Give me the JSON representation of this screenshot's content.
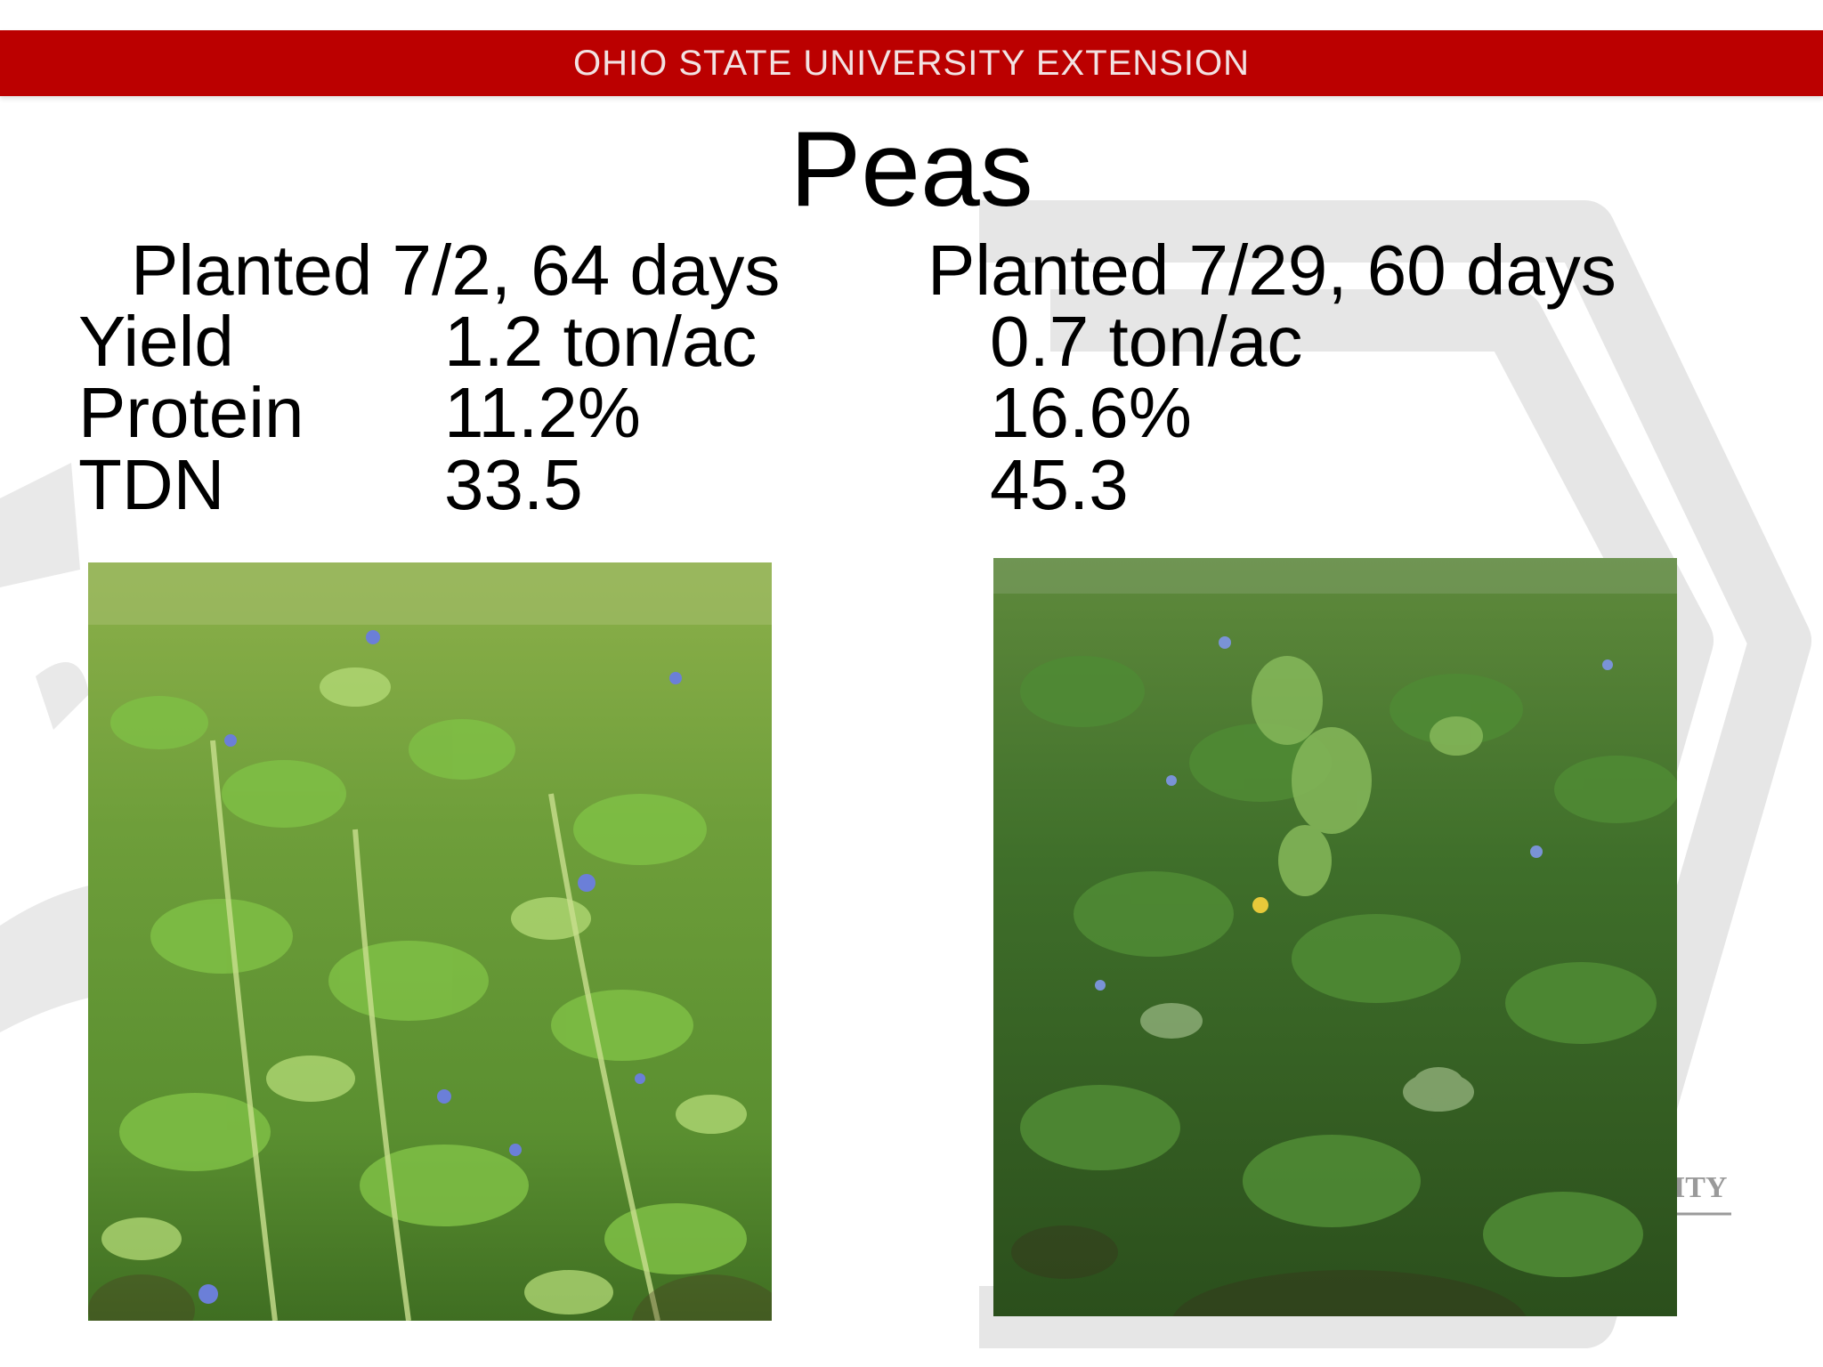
{
  "banner": {
    "text": "OHIO STATE UNIVERSITY EXTENSION",
    "color": "#bb0000"
  },
  "slide": {
    "title": "Peas",
    "planting_left": "Planted 7/2, 64 days",
    "planting_right": "Planted 7/29, 60 days",
    "rows": [
      {
        "label": "Yield",
        "left": "1.2 ton/ac",
        "right": "0.7 ton/ac"
      },
      {
        "label": "Protein",
        "left": "11.2%",
        "right": "16.6%"
      },
      {
        "label": "TDN",
        "left": "33.5",
        "right": "45.3"
      }
    ]
  },
  "watermark": {
    "fragment": "ITY"
  },
  "photos": {
    "left": "pea-field-photo-early-planting",
    "right": "pea-field-photo-late-planting"
  }
}
